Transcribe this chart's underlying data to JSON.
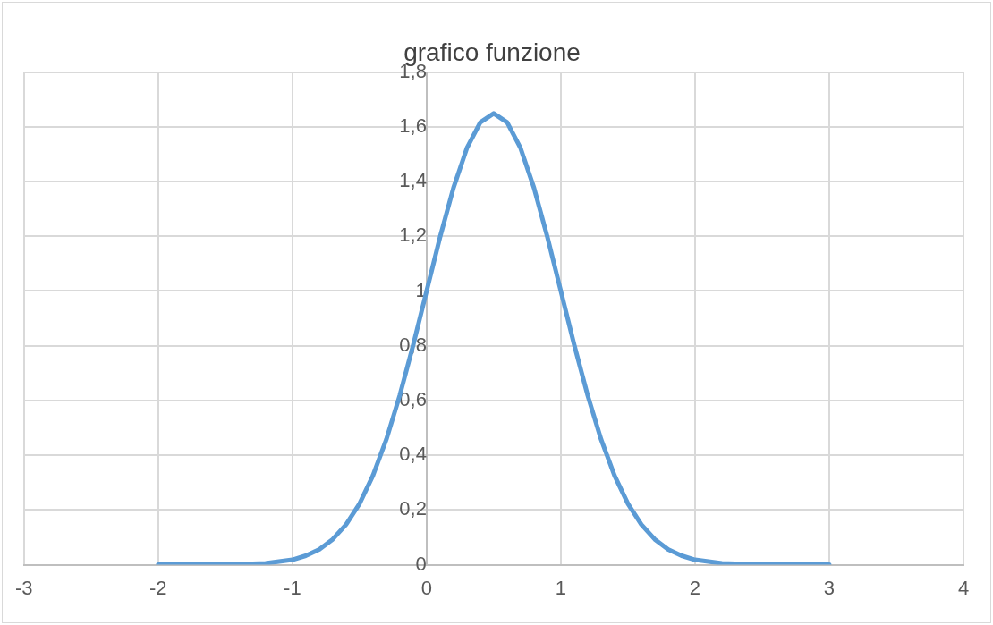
{
  "chart_data": {
    "type": "line",
    "title": "grafico funzione",
    "x": [
      -2,
      -1.5,
      -1.2,
      -1,
      -0.9,
      -0.8,
      -0.7,
      -0.6,
      -0.5,
      -0.4,
      -0.3,
      -0.2,
      -0.1,
      0,
      0.1,
      0.2,
      0.3,
      0.4,
      0.5,
      0.6,
      0.7,
      0.8,
      0.9,
      1,
      1.1,
      1.2,
      1.3,
      1.4,
      1.5,
      1.6,
      1.7,
      1.8,
      1.9,
      2,
      2.2,
      2.5,
      3
    ],
    "series": [
      {
        "color": "#5b9bd5",
        "values": [
          0,
          0,
          0.005,
          0.018,
          0.033,
          0.056,
          0.093,
          0.147,
          0.223,
          0.326,
          0.458,
          0.619,
          0.803,
          1,
          1.197,
          1.377,
          1.522,
          1.616,
          1.649,
          1.616,
          1.522,
          1.377,
          1.197,
          1,
          0.803,
          0.619,
          0.458,
          0.326,
          0.223,
          0.147,
          0.093,
          0.056,
          0.033,
          0.018,
          0.005,
          0,
          0
        ]
      }
    ],
    "xlim": [
      -3,
      4
    ],
    "xticks": [
      -3,
      -2,
      -1,
      0,
      1,
      2,
      3,
      4
    ],
    "ylim": [
      0,
      1.8
    ],
    "yticks": [
      0,
      {
        "value": 0.2,
        "label": "0,2"
      },
      {
        "value": 0.4,
        "label": "0,4"
      },
      {
        "value": 0.6,
        "label": "0,6"
      },
      {
        "value": 0.8,
        "label": "0,8"
      },
      1,
      {
        "value": 1.2,
        "label": "1,2"
      },
      {
        "value": 1.4,
        "label": "1,4"
      },
      {
        "value": 1.6,
        "label": "1,6"
      },
      {
        "value": 1.8,
        "label": "1,8"
      }
    ],
    "grid": true,
    "legend": false
  }
}
